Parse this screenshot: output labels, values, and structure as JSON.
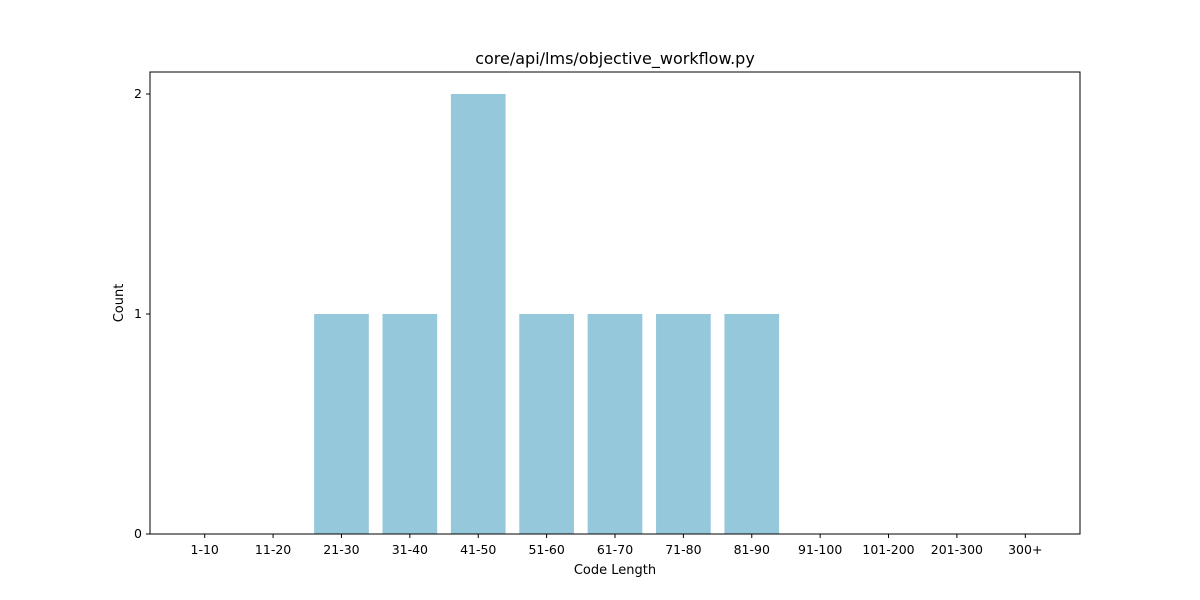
{
  "chart_data": {
    "type": "bar",
    "title": "core/api/lms/objective_workflow.py",
    "xlabel": "Code Length",
    "ylabel": "Count",
    "categories": [
      "1-10",
      "11-20",
      "21-30",
      "31-40",
      "41-50",
      "51-60",
      "61-70",
      "71-80",
      "81-90",
      "91-100",
      "101-200",
      "201-300",
      "300+"
    ],
    "values": [
      0,
      0,
      1,
      1,
      2,
      1,
      1,
      1,
      1,
      0,
      0,
      0,
      0
    ],
    "yticks": [
      0,
      1,
      2
    ],
    "ylim": [
      0,
      2.1
    ],
    "grid": false,
    "bar_color": "#96c8dc"
  }
}
